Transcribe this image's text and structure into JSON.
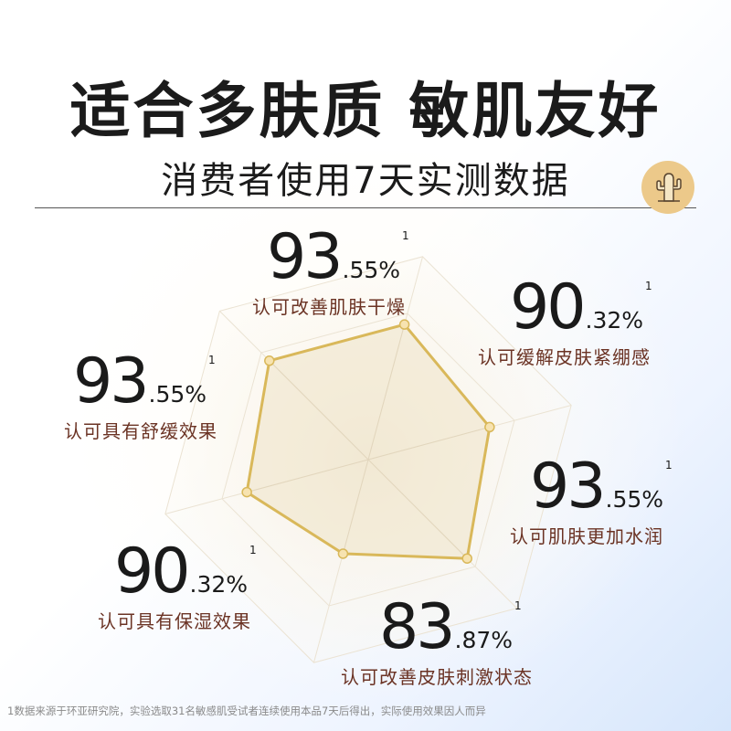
{
  "headline": "适合多肤质 敏肌友好",
  "subtitle": "消费者使用7天实测数据",
  "badge_icon": "cactus-icon",
  "stats": [
    {
      "whole": "93",
      "fraction": ".55%",
      "sup": "1",
      "label": "认可改善肌肤干燥"
    },
    {
      "whole": "90",
      "fraction": ".32%",
      "sup": "1",
      "label": "认可缓解皮肤紧绷感"
    },
    {
      "whole": "93",
      "fraction": ".55%",
      "sup": "1",
      "label": "认可肌肤更加水润"
    },
    {
      "whole": "83",
      "fraction": ".87%",
      "sup": "1",
      "label": "认可改善皮肤刺激状态"
    },
    {
      "whole": "90",
      "fraction": ".32%",
      "sup": "1",
      "label": "认可具有保湿效果"
    },
    {
      "whole": "93",
      "fraction": ".55%",
      "sup": "1",
      "label": "认可具有舒缓效果"
    }
  ],
  "chart_data": {
    "type": "radar",
    "categories": [
      "认可改善肌肤干燥",
      "认可缓解皮肤紧绷感",
      "认可肌肤更加水润",
      "认可改善皮肤刺激状态",
      "认可具有保湿效果",
      "认可具有舒缓效果"
    ],
    "values": [
      93.55,
      90.32,
      93.55,
      83.87,
      90.32,
      93.55
    ],
    "colors": {
      "polygon_stroke": "#d9b85a",
      "polygon_fill": "#efe3c8",
      "point_fill": "#f7e3b0",
      "grid": "#ebe3d3"
    }
  },
  "footnote": "1数据来源于环亚研究院，实验选取31名敏感肌受试者连续使用本品7天后得出，实际使用效果因人而异"
}
